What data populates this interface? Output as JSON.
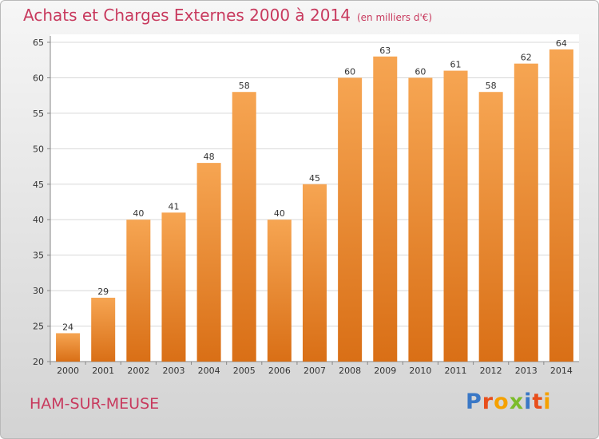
{
  "header": {
    "title": "Achats et Charges Externes 2000 à 2014",
    "subtitle": "(en milliers d'€)"
  },
  "footer": {
    "commune": "HAM-SUR-MEUSE",
    "logo_letters": [
      "P",
      "r",
      "o",
      "x",
      "i",
      "t",
      "i"
    ],
    "logo_colors": [
      "#3a78c6",
      "#e84e1b",
      "#f5a100",
      "#7cbc2a",
      "#3a78c6",
      "#e84e1b",
      "#f5a100"
    ]
  },
  "chart_data": {
    "type": "bar",
    "title": "Achats et Charges Externes 2000 à 2014",
    "subtitle": "(en milliers d'€)",
    "categories": [
      "2000",
      "2001",
      "2002",
      "2003",
      "2004",
      "2005",
      "2006",
      "2007",
      "2008",
      "2009",
      "2010",
      "2011",
      "2012",
      "2013",
      "2014"
    ],
    "values": [
      24,
      29,
      40,
      41,
      48,
      58,
      40,
      45,
      60,
      63,
      60,
      61,
      58,
      62,
      64
    ],
    "ylim": [
      20,
      65
    ],
    "yticks": [
      20,
      25,
      30,
      35,
      40,
      45,
      50,
      55,
      60,
      65
    ],
    "grid": true,
    "bar_color_top": "#f6a552",
    "bar_color_bottom": "#d96f16"
  }
}
